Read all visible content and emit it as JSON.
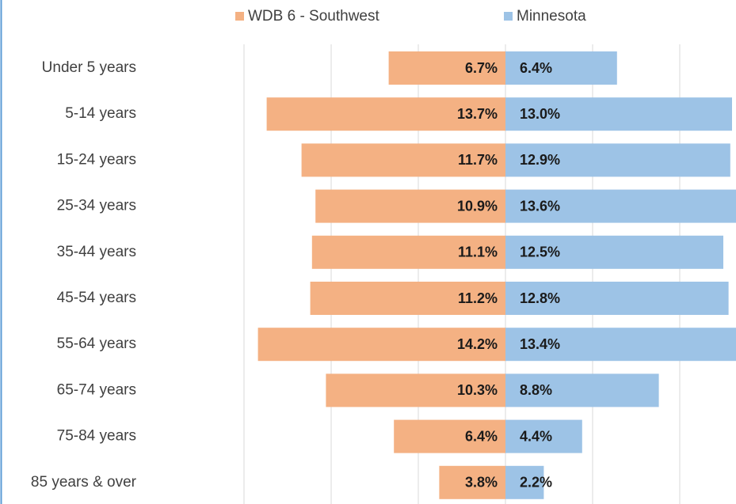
{
  "chart_data": {
    "type": "pyramid",
    "categories": [
      "Under 5 years",
      "5-14 years",
      "15-24 years",
      "25-34 years",
      "35-44 years",
      "45-54 years",
      "55-64 years",
      "65-74 years",
      "75-84 years",
      "85 years & over"
    ],
    "series": [
      {
        "name": "WDB 6 - Southwest",
        "color": "#f4b183",
        "side": "left",
        "values": [
          6.7,
          13.7,
          11.7,
          10.9,
          11.1,
          11.2,
          14.2,
          10.3,
          6.4,
          3.8
        ],
        "value_labels": [
          "6.7%",
          "13.7%",
          "11.7%",
          "10.9%",
          "11.1%",
          "11.2%",
          "14.2%",
          "10.3%",
          "6.4%",
          "3.8%"
        ]
      },
      {
        "name": "Minnesota",
        "color": "#9dc3e6",
        "side": "right",
        "values": [
          6.4,
          13.0,
          12.9,
          13.6,
          12.5,
          12.8,
          13.4,
          8.8,
          4.4,
          2.2
        ],
        "value_labels": [
          "6.4%",
          "13.0%",
          "12.9%",
          "13.6%",
          "12.5%",
          "12.8%",
          "13.4%",
          "8.8%",
          "4.4%",
          "2.2%"
        ]
      }
    ],
    "xlim": [
      -15,
      15
    ],
    "xticks": [
      -15,
      -10,
      -5,
      0,
      5,
      10
    ],
    "grid": true,
    "legend": "top"
  }
}
